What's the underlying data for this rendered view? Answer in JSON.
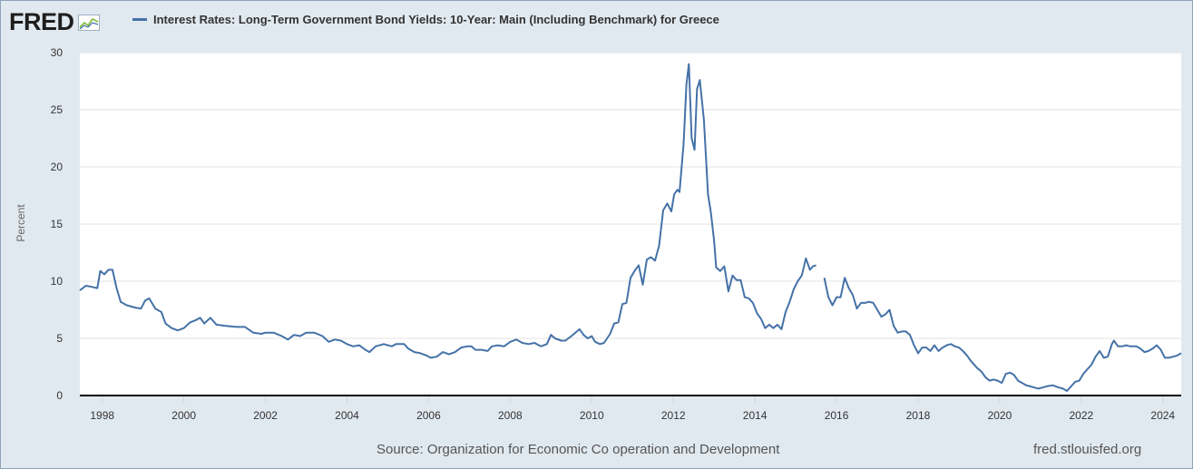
{
  "header": {
    "logo": "FRED",
    "logo_icon": "line-chart-icon",
    "legend_label": "Interest Rates: Long-Term Government Bond Yields: 10-Year: Main (Including Benchmark) for Greece"
  },
  "footer": {
    "source": "Source: Organization for Economic Co operation and Development",
    "url": "fred.stlouisfed.org"
  },
  "colors": {
    "line": "#4572a7",
    "plot_bg": "#ffffff",
    "page_bg": "#e1e9f0"
  },
  "chart_data": {
    "type": "line",
    "title": "",
    "xlabel": "",
    "ylabel": "Percent",
    "ylim": [
      0,
      30
    ],
    "xlim": [
      1997.45,
      2024.45
    ],
    "grid": true,
    "legend_position": "top",
    "y_ticks": [
      "0",
      "5",
      "10",
      "15",
      "20",
      "25",
      "30"
    ],
    "x_ticks": [
      "1998",
      "2000",
      "2002",
      "2004",
      "2006",
      "2008",
      "2010",
      "2012",
      "2014",
      "2016",
      "2018",
      "2020",
      "2022",
      "2024"
    ],
    "series": [
      {
        "name": "Interest Rates: Long-Term Government Bond Yields: 10-Year: Main (Including Benchmark) for Greece",
        "segments": [
          [
            [
              1997.45,
              9.2
            ],
            [
              1997.6,
              9.6
            ],
            [
              1997.75,
              9.5
            ],
            [
              1997.88,
              9.4
            ],
            [
              1997.95,
              10.9
            ],
            [
              1998.05,
              10.6
            ],
            [
              1998.15,
              11.0
            ],
            [
              1998.25,
              11.0
            ],
            [
              1998.35,
              9.4
            ],
            [
              1998.45,
              8.2
            ],
            [
              1998.6,
              7.9
            ],
            [
              1998.8,
              7.7
            ],
            [
              1998.95,
              7.6
            ],
            [
              1999.05,
              8.3
            ],
            [
              1999.15,
              8.5
            ],
            [
              1999.3,
              7.6
            ],
            [
              1999.45,
              7.3
            ],
            [
              1999.55,
              6.3
            ],
            [
              1999.7,
              5.9
            ],
            [
              1999.85,
              5.7
            ],
            [
              2000.0,
              5.9
            ],
            [
              2000.15,
              6.4
            ],
            [
              2000.3,
              6.6
            ],
            [
              2000.4,
              6.8
            ],
            [
              2000.5,
              6.3
            ],
            [
              2000.65,
              6.8
            ],
            [
              2000.8,
              6.2
            ],
            [
              2001.0,
              6.1
            ],
            [
              2001.3,
              6.0
            ],
            [
              2001.5,
              6.0
            ],
            [
              2001.7,
              5.5
            ],
            [
              2001.9,
              5.4
            ],
            [
              2002.0,
              5.5
            ],
            [
              2002.2,
              5.5
            ],
            [
              2002.4,
              5.2
            ],
            [
              2002.55,
              4.9
            ],
            [
              2002.7,
              5.3
            ],
            [
              2002.85,
              5.2
            ],
            [
              2003.0,
              5.5
            ],
            [
              2003.2,
              5.5
            ],
            [
              2003.4,
              5.2
            ],
            [
              2003.55,
              4.7
            ],
            [
              2003.7,
              4.9
            ],
            [
              2003.85,
              4.8
            ],
            [
              2004.0,
              4.5
            ],
            [
              2004.15,
              4.3
            ],
            [
              2004.3,
              4.4
            ],
            [
              2004.45,
              4.0
            ],
            [
              2004.55,
              3.8
            ],
            [
              2004.7,
              4.3
            ],
            [
              2004.9,
              4.5
            ],
            [
              2005.0,
              4.4
            ],
            [
              2005.1,
              4.3
            ],
            [
              2005.2,
              4.5
            ],
            [
              2005.4,
              4.5
            ],
            [
              2005.5,
              4.1
            ],
            [
              2005.65,
              3.8
            ],
            [
              2005.8,
              3.7
            ],
            [
              2005.95,
              3.5
            ],
            [
              2006.05,
              3.3
            ],
            [
              2006.2,
              3.4
            ],
            [
              2006.35,
              3.8
            ],
            [
              2006.5,
              3.6
            ],
            [
              2006.65,
              3.8
            ],
            [
              2006.8,
              4.2
            ],
            [
              2006.95,
              4.3
            ],
            [
              2007.05,
              4.3
            ],
            [
              2007.15,
              4.0
            ],
            [
              2007.3,
              4.0
            ],
            [
              2007.45,
              3.9
            ],
            [
              2007.55,
              4.3
            ],
            [
              2007.7,
              4.4
            ],
            [
              2007.85,
              4.3
            ],
            [
              2008.0,
              4.7
            ],
            [
              2008.15,
              4.9
            ],
            [
              2008.3,
              4.6
            ],
            [
              2008.45,
              4.5
            ],
            [
              2008.6,
              4.6
            ],
            [
              2008.75,
              4.3
            ],
            [
              2008.9,
              4.5
            ],
            [
              2009.0,
              5.3
            ],
            [
              2009.1,
              5.0
            ],
            [
              2009.25,
              4.8
            ],
            [
              2009.35,
              4.8
            ],
            [
              2009.5,
              5.2
            ],
            [
              2009.6,
              5.5
            ],
            [
              2009.7,
              5.8
            ],
            [
              2009.8,
              5.3
            ],
            [
              2009.9,
              5.0
            ],
            [
              2010.0,
              5.2
            ],
            [
              2010.08,
              4.7
            ],
            [
              2010.2,
              4.5
            ],
            [
              2010.3,
              4.6
            ],
            [
              2010.45,
              5.4
            ],
            [
              2010.55,
              6.3
            ],
            [
              2010.65,
              6.4
            ],
            [
              2010.75,
              8.0
            ],
            [
              2010.85,
              8.1
            ],
            [
              2010.95,
              10.3
            ],
            [
              2011.05,
              10.9
            ],
            [
              2011.15,
              11.4
            ],
            [
              2011.25,
              9.7
            ],
            [
              2011.35,
              11.9
            ],
            [
              2011.45,
              12.1
            ],
            [
              2011.55,
              11.8
            ],
            [
              2011.65,
              13.1
            ],
            [
              2011.75,
              16.2
            ],
            [
              2011.85,
              16.8
            ],
            [
              2011.95,
              16.1
            ],
            [
              2012.02,
              17.6
            ],
            [
              2012.1,
              18.0
            ],
            [
              2012.15,
              17.8
            ],
            [
              2012.25,
              22.0
            ],
            [
              2012.32,
              27.2
            ],
            [
              2012.38,
              29.0
            ],
            [
              2012.45,
              22.5
            ],
            [
              2012.52,
              21.5
            ],
            [
              2012.58,
              26.8
            ],
            [
              2012.65,
              27.6
            ],
            [
              2012.75,
              24.1
            ],
            [
              2012.85,
              17.6
            ],
            [
              2012.92,
              16.0
            ],
            [
              2013.0,
              13.5
            ],
            [
              2013.05,
              11.2
            ],
            [
              2013.15,
              10.9
            ],
            [
              2013.25,
              11.3
            ],
            [
              2013.35,
              9.1
            ],
            [
              2013.45,
              10.5
            ],
            [
              2013.55,
              10.1
            ],
            [
              2013.65,
              10.1
            ],
            [
              2013.75,
              8.6
            ],
            [
              2013.85,
              8.5
            ],
            [
              2013.95,
              8.1
            ],
            [
              2014.05,
              7.2
            ],
            [
              2014.15,
              6.7
            ],
            [
              2014.25,
              5.9
            ],
            [
              2014.35,
              6.2
            ],
            [
              2014.45,
              5.9
            ],
            [
              2014.55,
              6.2
            ],
            [
              2014.65,
              5.8
            ],
            [
              2014.75,
              7.3
            ],
            [
              2014.85,
              8.2
            ],
            [
              2014.95,
              9.3
            ],
            [
              2015.05,
              10.0
            ],
            [
              2015.15,
              10.5
            ],
            [
              2015.25,
              12.0
            ],
            [
              2015.35,
              11.0
            ],
            [
              2015.42,
              11.3
            ],
            [
              2015.5,
              11.4
            ]
          ],
          [
            [
              2015.7,
              10.3
            ],
            [
              2015.8,
              8.6
            ],
            [
              2015.9,
              7.9
            ],
            [
              2016.0,
              8.6
            ],
            [
              2016.1,
              8.6
            ],
            [
              2016.2,
              10.3
            ],
            [
              2016.3,
              9.4
            ],
            [
              2016.4,
              8.8
            ],
            [
              2016.5,
              7.6
            ],
            [
              2016.6,
              8.1
            ],
            [
              2016.7,
              8.1
            ],
            [
              2016.8,
              8.2
            ],
            [
              2016.9,
              8.1
            ],
            [
              2017.0,
              7.5
            ],
            [
              2017.1,
              6.9
            ],
            [
              2017.2,
              7.1
            ],
            [
              2017.3,
              7.5
            ],
            [
              2017.4,
              6.1
            ],
            [
              2017.5,
              5.5
            ],
            [
              2017.6,
              5.6
            ],
            [
              2017.7,
              5.6
            ],
            [
              2017.8,
              5.3
            ],
            [
              2017.9,
              4.4
            ],
            [
              2018.0,
              3.7
            ],
            [
              2018.1,
              4.2
            ],
            [
              2018.2,
              4.2
            ],
            [
              2018.3,
              3.9
            ],
            [
              2018.4,
              4.4
            ],
            [
              2018.5,
              3.9
            ],
            [
              2018.6,
              4.2
            ],
            [
              2018.7,
              4.4
            ],
            [
              2018.8,
              4.5
            ],
            [
              2018.9,
              4.3
            ],
            [
              2019.0,
              4.2
            ],
            [
              2019.1,
              3.9
            ],
            [
              2019.2,
              3.5
            ],
            [
              2019.3,
              3.0
            ],
            [
              2019.45,
              2.4
            ],
            [
              2019.55,
              2.1
            ],
            [
              2019.65,
              1.6
            ],
            [
              2019.75,
              1.3
            ],
            [
              2019.85,
              1.4
            ],
            [
              2019.95,
              1.3
            ],
            [
              2020.05,
              1.1
            ],
            [
              2020.15,
              1.9
            ],
            [
              2020.25,
              2.0
            ],
            [
              2020.35,
              1.8
            ],
            [
              2020.45,
              1.3
            ],
            [
              2020.55,
              1.1
            ],
            [
              2020.65,
              0.9
            ],
            [
              2020.75,
              0.8
            ],
            [
              2020.85,
              0.7
            ],
            [
              2020.95,
              0.6
            ],
            [
              2021.05,
              0.7
            ],
            [
              2021.15,
              0.8
            ],
            [
              2021.3,
              0.9
            ],
            [
              2021.45,
              0.7
            ],
            [
              2021.55,
              0.6
            ],
            [
              2021.65,
              0.4
            ],
            [
              2021.75,
              0.8
            ],
            [
              2021.85,
              1.2
            ],
            [
              2021.95,
              1.3
            ],
            [
              2022.05,
              1.9
            ],
            [
              2022.15,
              2.3
            ],
            [
              2022.25,
              2.7
            ],
            [
              2022.35,
              3.4
            ],
            [
              2022.45,
              3.9
            ],
            [
              2022.55,
              3.3
            ],
            [
              2022.65,
              3.4
            ],
            [
              2022.75,
              4.5
            ],
            [
              2022.8,
              4.8
            ],
            [
              2022.9,
              4.3
            ],
            [
              2023.0,
              4.3
            ],
            [
              2023.1,
              4.4
            ],
            [
              2023.2,
              4.3
            ],
            [
              2023.35,
              4.3
            ],
            [
              2023.45,
              4.1
            ],
            [
              2023.55,
              3.8
            ],
            [
              2023.65,
              3.9
            ],
            [
              2023.75,
              4.1
            ],
            [
              2023.85,
              4.4
            ],
            [
              2023.95,
              4.0
            ],
            [
              2024.05,
              3.3
            ],
            [
              2024.15,
              3.3
            ],
            [
              2024.25,
              3.4
            ],
            [
              2024.35,
              3.5
            ],
            [
              2024.45,
              3.7
            ]
          ]
        ]
      }
    ]
  }
}
